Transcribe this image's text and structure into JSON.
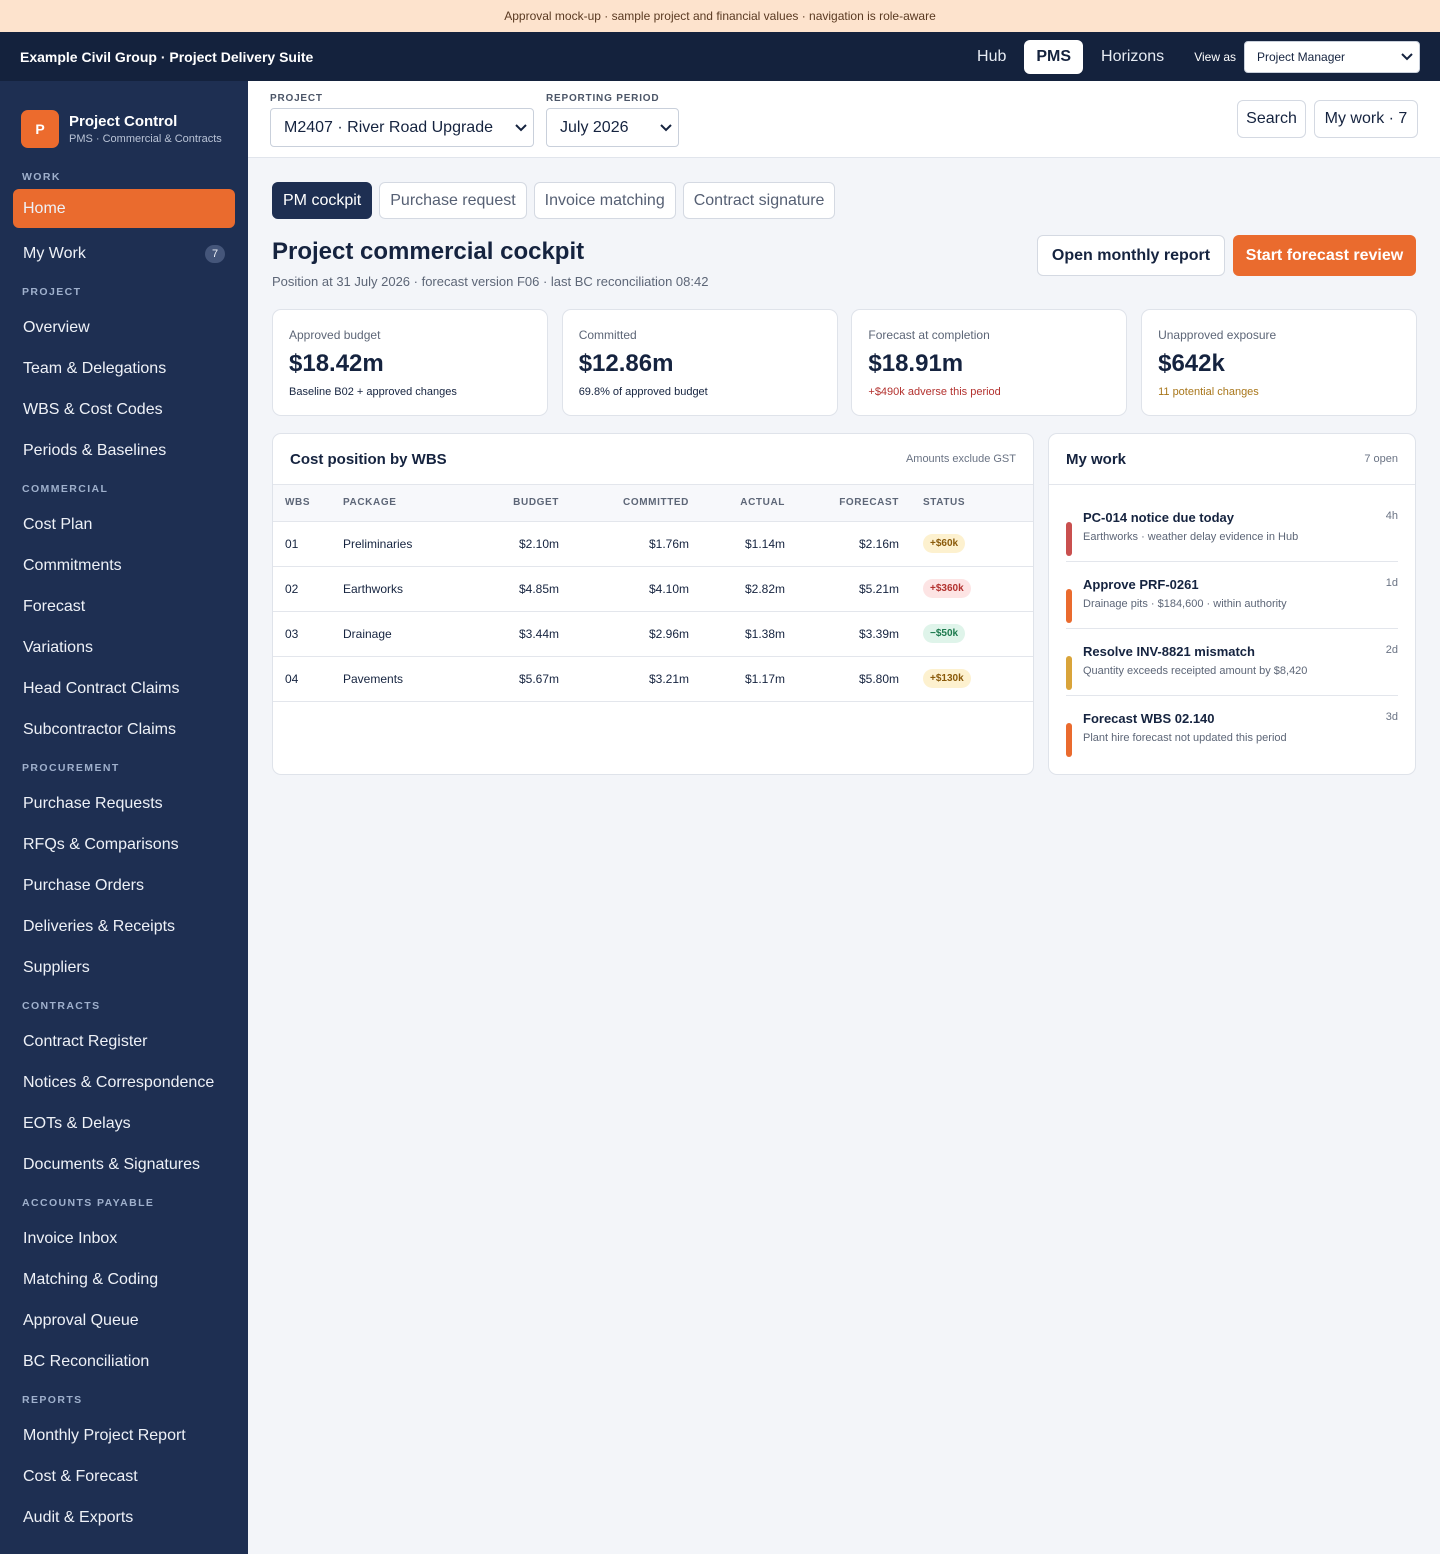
{
  "banner": "Approval mock-up · sample project and financial values · navigation is role-aware",
  "topbar": {
    "brand": "Example Civil Group · Project Delivery Suite",
    "apps": [
      "Hub",
      "PMS",
      "Horizons"
    ],
    "view_as_label": "View as",
    "view_as": "Project Manager"
  },
  "sidebar": {
    "logo": "P",
    "title": "Project Control",
    "subtitle": "PMS · Commercial & Contracts",
    "sections": [
      {
        "heading": "WORK",
        "items": [
          {
            "label": "Home"
          },
          {
            "label": "My Work",
            "badge": "7"
          }
        ]
      },
      {
        "heading": "PROJECT",
        "items": [
          {
            "label": "Overview"
          },
          {
            "label": "Team & Delegations"
          },
          {
            "label": "WBS & Cost Codes"
          },
          {
            "label": "Periods & Baselines"
          }
        ]
      },
      {
        "heading": "COMMERCIAL",
        "items": [
          {
            "label": "Cost Plan"
          },
          {
            "label": "Commitments"
          },
          {
            "label": "Forecast"
          },
          {
            "label": "Variations"
          },
          {
            "label": "Head Contract Claims"
          },
          {
            "label": "Subcontractor Claims"
          }
        ]
      },
      {
        "heading": "PROCUREMENT",
        "items": [
          {
            "label": "Purchase Requests"
          },
          {
            "label": "RFQs & Comparisons"
          },
          {
            "label": "Purchase Orders"
          },
          {
            "label": "Deliveries & Receipts"
          },
          {
            "label": "Suppliers"
          }
        ]
      },
      {
        "heading": "CONTRACTS",
        "items": [
          {
            "label": "Contract Register"
          },
          {
            "label": "Notices & Correspondence"
          },
          {
            "label": "EOTs & Delays"
          },
          {
            "label": "Documents & Signatures"
          }
        ]
      },
      {
        "heading": "ACCOUNTS PAYABLE",
        "items": [
          {
            "label": "Invoice Inbox"
          },
          {
            "label": "Matching & Coding"
          },
          {
            "label": "Approval Queue"
          },
          {
            "label": "BC Reconciliation"
          }
        ]
      },
      {
        "heading": "REPORTS",
        "items": [
          {
            "label": "Monthly Project Report"
          },
          {
            "label": "Cost & Forecast"
          },
          {
            "label": "Audit & Exports"
          }
        ]
      }
    ]
  },
  "filters": {
    "project_label": "PROJECT",
    "project": "M2407 · River Road Upgrade",
    "period_label": "REPORTING PERIOD",
    "period": "July 2026",
    "search": "Search",
    "my_work": "My work · 7"
  },
  "tabs": [
    "PM cockpit",
    "Purchase request",
    "Invoice matching",
    "Contract signature"
  ],
  "page": {
    "title": "Project commercial cockpit",
    "subtitle": "Position at 31 July 2026 · forecast version F06 · last BC reconciliation 08:42",
    "actions": [
      "Open monthly report",
      "Start forecast review"
    ]
  },
  "kpis": [
    {
      "label": "Approved budget",
      "value": "$18.42m",
      "note": "Baseline B02 + approved changes"
    },
    {
      "label": "Committed",
      "value": "$12.86m",
      "note": "69.8% of approved budget"
    },
    {
      "label": "Forecast at completion",
      "value": "$18.91m",
      "note": "+$490k adverse this period"
    },
    {
      "label": "Unapproved exposure",
      "value": "$642k",
      "note": "11 potential changes"
    }
  ],
  "table": {
    "title": "Cost position by WBS",
    "note": "Amounts exclude GST",
    "columns": [
      "WBS",
      "PACKAGE",
      "BUDGET",
      "COMMITTED",
      "ACTUAL",
      "FORECAST",
      "STATUS"
    ],
    "rows": [
      [
        "01",
        "Preliminaries",
        "$2.10m",
        "$1.76m",
        "$1.14m",
        "$2.16m",
        "+$60k"
      ],
      [
        "02",
        "Earthworks",
        "$4.85m",
        "$4.10m",
        "$2.82m",
        "$5.21m",
        "+$360k"
      ],
      [
        "03",
        "Drainage",
        "$3.44m",
        "$2.96m",
        "$1.38m",
        "$3.39m",
        "−$50k"
      ],
      [
        "04",
        "Pavements",
        "$5.67m",
        "$3.21m",
        "$1.17m",
        "$5.80m",
        "+$130k"
      ]
    ]
  },
  "work": {
    "title": "My work",
    "count": "7 open",
    "items": [
      {
        "title": "PC-014 notice due today",
        "detail": "Earthworks · weather delay evidence in Hub",
        "age": "4h"
      },
      {
        "title": "Approve PRF-0261",
        "detail": "Drainage pits · $184,600 · within authority",
        "age": "1d"
      },
      {
        "title": "Resolve INV-8821 mismatch",
        "detail": "Quantity exceeds receipted amount by $8,420",
        "age": "2d"
      },
      {
        "title": "Forecast WBS 02.140",
        "detail": "Plant hire forecast not updated this period",
        "age": "3d"
      }
    ]
  }
}
